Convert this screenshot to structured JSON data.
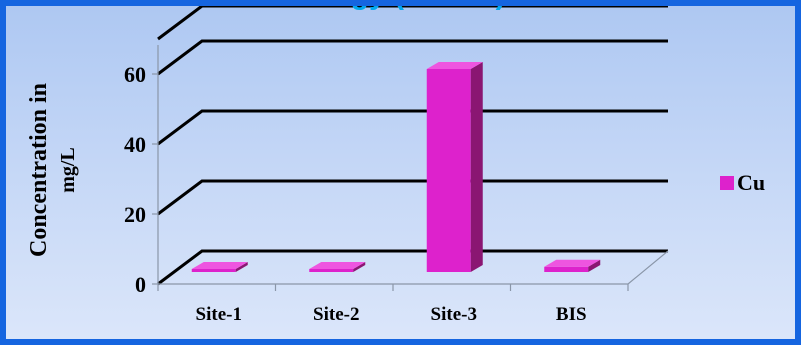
{
  "page_title": "...ogy (...........)",
  "chart_data": {
    "type": "bar",
    "categories": [
      "Site-1",
      "Site-2",
      "Site-3",
      "BIS"
    ],
    "series": [
      {
        "name": "Cu",
        "values": [
          0.5,
          0.5,
          58,
          1.5
        ]
      }
    ],
    "ylabel": "Concentration in mg/L",
    "ylabel_lines": [
      "Concentration in",
      "mg/L"
    ],
    "xlabel": "",
    "ylim": [
      0,
      70
    ],
    "yticks": [
      0,
      20,
      40,
      60
    ],
    "grid": true,
    "legend_position": "right",
    "three_d": true,
    "colors": {
      "bar_front": "#dd22cc",
      "bar_top": "#ee55e0",
      "bar_side": "#8a1672",
      "gridline": "#000000",
      "frame_border": "#1565e0",
      "background_top": "#aec8f2",
      "background_bottom": "#dbe6fa",
      "title": "#00a8f0"
    }
  }
}
